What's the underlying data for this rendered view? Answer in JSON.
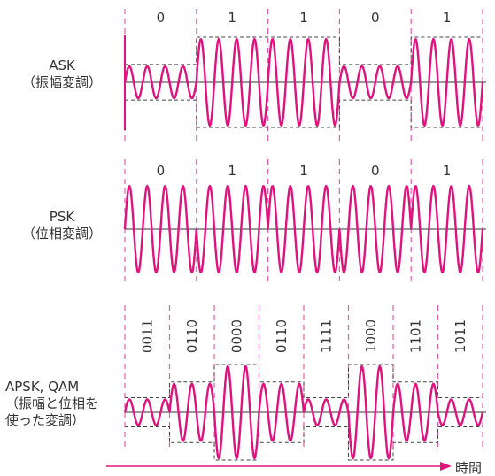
{
  "colors": {
    "wave": "#e0137e",
    "boundary": "#e85aa6",
    "axis": "#333333",
    "envelope": "#444444",
    "text": "#333333"
  },
  "rows": [
    {
      "id": "ask",
      "label_lines": [
        "ASK",
        "（振幅変調）"
      ],
      "symbol_labels": [
        "0",
        "1",
        "1",
        "0",
        "1"
      ],
      "amplitudes": [
        0.37,
        1,
        1,
        0.37,
        1
      ],
      "phase_flip": [
        false,
        false,
        false,
        false,
        false
      ]
    },
    {
      "id": "psk",
      "label_lines": [
        "PSK",
        "（位相変調）"
      ],
      "symbol_labels": [
        "0",
        "1",
        "1",
        "0",
        "1"
      ],
      "amplitudes": [
        1,
        1,
        1,
        1,
        1
      ],
      "phase_flip": [
        false,
        true,
        false,
        true,
        false
      ]
    },
    {
      "id": "qam",
      "label_lines": [
        "APSK, QAM",
        "（振幅と位相を",
        "使った変調）"
      ],
      "symbol_labels": [
        "0011",
        "0110",
        "0000",
        "0110",
        "1111",
        "1000",
        "1101",
        "1011"
      ],
      "amplitudes": [
        0.28,
        0.62,
        1,
        0.62,
        0.28,
        1,
        0.62,
        0.28
      ],
      "phase_flip": [
        false,
        false,
        true,
        false,
        false,
        true,
        false,
        true
      ]
    }
  ],
  "time_axis_label": "時間"
}
